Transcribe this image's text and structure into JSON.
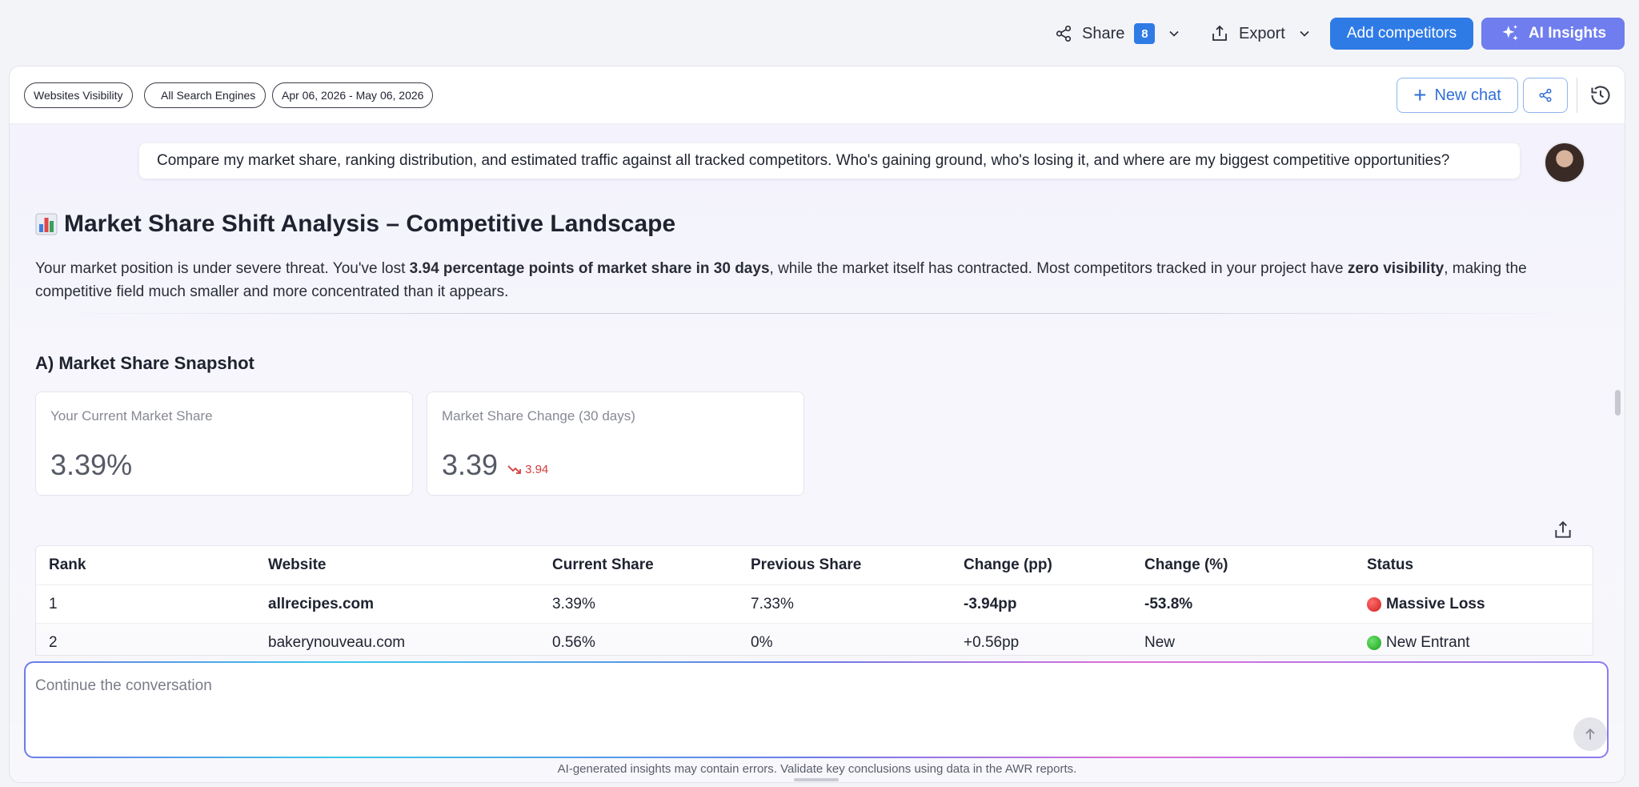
{
  "toolbar": {
    "share_label": "Share",
    "share_count": "8",
    "export_label": "Export",
    "add_competitors_label": "Add competitors",
    "ai_insights_label": "AI Insights"
  },
  "filters": {
    "chip_report": "Websites Visibility",
    "chip_engines": "All Search Engines",
    "chip_dates": "Apr 06, 2026 - May 06, 2026"
  },
  "panel_actions": {
    "new_chat_label": "New chat"
  },
  "chat": {
    "user_message": "Compare my market share, ranking distribution, and estimated traffic against all tracked competitors. Who's gaining ground, who's losing it, and where are my biggest competitive opportunities?",
    "title": "Market Share Shift Analysis – Competitive Landscape",
    "intro_1": "Your market position is under severe threat. You've lost ",
    "intro_bold_1": "3.94 percentage points of market share in 30 days",
    "intro_2": ", while the market itself has contracted. Most competitors tracked in your project have ",
    "intro_bold_2": "zero visibility",
    "intro_3": ", making the competitive field much smaller and more concentrated than it appears.",
    "section_a_title": "A) Market Share Snapshot"
  },
  "kpis": [
    {
      "label": "Your Current Market Share",
      "value": "3.39%",
      "delta": ""
    },
    {
      "label": "Market Share Change (30 days)",
      "value": "3.39",
      "delta": "3.94"
    }
  ],
  "table": {
    "headers": [
      "Rank",
      "Website",
      "Current Share",
      "Previous Share",
      "Change (pp)",
      "Change (%)",
      "Status"
    ],
    "rows": [
      [
        "1",
        "allrecipes.com",
        "3.39%",
        "7.33%",
        "-3.94pp",
        "-53.8%",
        "Massive Loss"
      ],
      [
        "2",
        "bakerynouveau.com",
        "0.56%",
        "0%",
        "+0.56pp",
        "New",
        "New Entrant"
      ]
    ]
  },
  "composer": {
    "placeholder": "Continue the conversation"
  },
  "disclaimer": "AI-generated insights may contain errors. Validate key conclusions using data in the AWR reports.",
  "colors": {
    "primary": "#2f7be6",
    "ai": "#6f7dee",
    "loss": "#d43b3b"
  }
}
